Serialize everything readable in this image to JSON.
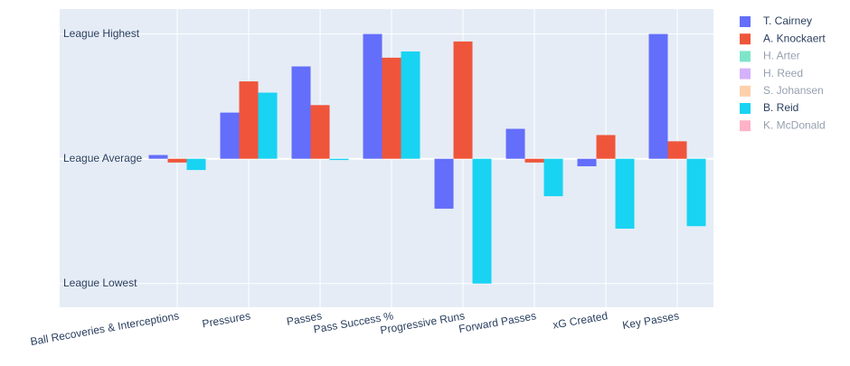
{
  "chart_data": {
    "type": "bar",
    "categories": [
      "Ball Recoveries & Interceptions",
      "Pressures",
      "Passes",
      "Pass Success %",
      "Progressive Runs",
      "Forward Passes",
      "xG Created",
      "Key Passes"
    ],
    "series": [
      {
        "name": "T. Cairney",
        "color": "#636efa",
        "values": [
          0.03,
          0.37,
          0.74,
          1.0,
          -0.4,
          0.24,
          -0.06,
          1.0
        ]
      },
      {
        "name": "A. Knockaert",
        "color": "#ef553b",
        "values": [
          -0.03,
          0.62,
          0.43,
          0.81,
          0.94,
          -0.03,
          0.19,
          0.14
        ]
      },
      {
        "name": "H. Arter",
        "color": "#00cc96",
        "visible": "legendonly"
      },
      {
        "name": "H. Reed",
        "color": "#ab63fa",
        "visible": "legendonly"
      },
      {
        "name": "S. Johansen",
        "color": "#ffa15a",
        "visible": "legendonly"
      },
      {
        "name": "B. Reid",
        "color": "#19d3f3",
        "values": [
          -0.09,
          0.53,
          -0.01,
          0.86,
          -1.0,
          -0.3,
          -0.56,
          -0.54
        ]
      },
      {
        "name": "K. McDonald",
        "color": "#ff6692",
        "visible": "legendonly"
      }
    ],
    "ylim": [
      -1.19,
      1.2
    ],
    "yticks": [
      {
        "value": -1,
        "label": "League Lowest"
      },
      {
        "value": 0,
        "label": "League Average"
      },
      {
        "value": 1,
        "label": "League Highest"
      }
    ],
    "grid": true
  }
}
